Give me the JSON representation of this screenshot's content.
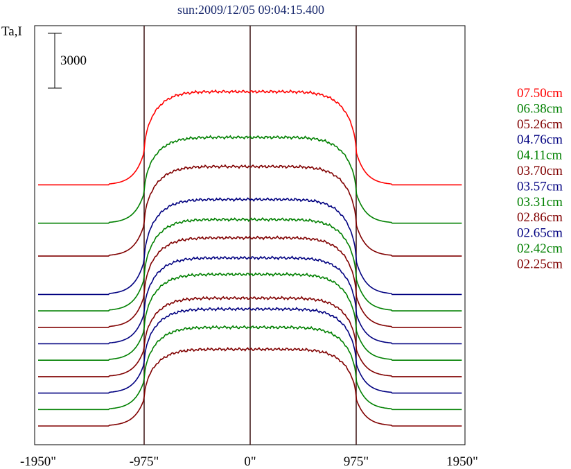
{
  "chart_data": {
    "type": "line",
    "title": "sun:2009/12/05 09:04:15.400",
    "ylabel": "Ta,I",
    "scale_bar_label": "3000",
    "x_tick_labels": [
      "-1950\"",
      "-975\"",
      "0\"",
      "975\"",
      "1950\""
    ],
    "x_ticks": [
      -1950,
      -975,
      0,
      975,
      1950
    ],
    "xlim": [
      -1950,
      1950
    ],
    "vertical_markers": [
      -975,
      0,
      975
    ],
    "series": [
      {
        "name": "07.50cm",
        "color": "#ff0000",
        "offset": 13200,
        "limb_amp": 13200,
        "peak": 18300
      },
      {
        "name": "06.38cm",
        "color": "#008000",
        "offset": 11100,
        "limb_amp": 11200,
        "peak": 15800
      },
      {
        "name": "05.26cm",
        "color": "#800000",
        "offset": 9300,
        "limb_amp": 10000,
        "peak": 14200
      },
      {
        "name": "04.76cm",
        "color": "#000080",
        "offset": 7200,
        "limb_amp": 8000,
        "peak": 12400
      },
      {
        "name": "04.11cm",
        "color": "#008000",
        "offset": 6300,
        "limb_amp": 7000,
        "peak": 11300
      },
      {
        "name": "03.70cm",
        "color": "#800000",
        "offset": 5400,
        "limb_amp": 6000,
        "peak": 10300
      },
      {
        "name": "03.57cm",
        "color": "#000080",
        "offset": 4500,
        "limb_amp": 5000,
        "peak": 9200
      },
      {
        "name": "03.31cm",
        "color": "#008000",
        "offset": 3600,
        "limb_amp": 4000,
        "peak": 8300
      },
      {
        "name": "02.86cm",
        "color": "#800000",
        "offset": 2700,
        "limb_amp": 3000,
        "peak": 7000
      },
      {
        "name": "02.65cm",
        "color": "#000080",
        "offset": 1800,
        "limb_amp": 2000,
        "peak": 6400
      },
      {
        "name": "02.42cm",
        "color": "#008000",
        "offset": 900,
        "limb_amp": 1000,
        "peak": 5400
      },
      {
        "name": "02.25cm",
        "color": "#800000",
        "offset": 0,
        "limb_amp": 0,
        "peak": 4200
      }
    ]
  }
}
